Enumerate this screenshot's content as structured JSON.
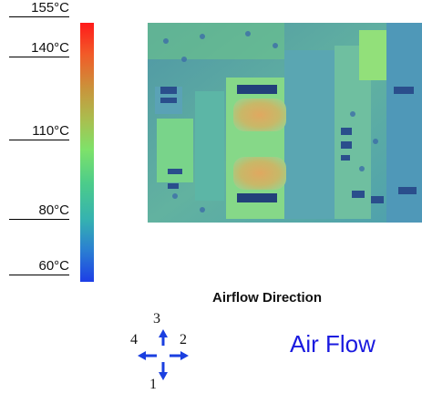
{
  "scale": {
    "labels": [
      "155°C",
      "140°C",
      "110°C",
      "80°C",
      "60°C"
    ]
  },
  "airflow": {
    "title": "Airflow Direction",
    "label": "Air Flow",
    "directions": [
      "3",
      "4",
      "2",
      "1"
    ]
  },
  "colors": {
    "scale_top": "#ff1a1a",
    "scale_mid": "#7ee26a",
    "scale_bottom": "#1d3ee6",
    "arrow": "#1a3fe0",
    "air_flow_text": "#1a1adf"
  }
}
